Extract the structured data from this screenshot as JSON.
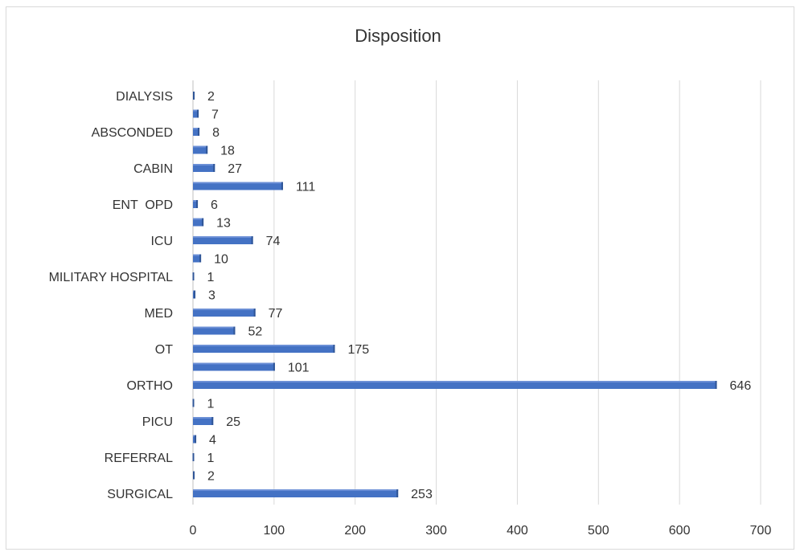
{
  "chart_data": {
    "type": "bar",
    "orientation": "horizontal",
    "title": "Disposition",
    "categories": [
      "SURGICAL",
      "",
      "REFERRAL",
      "",
      "PICU",
      "",
      "ORTHO",
      "",
      "OT",
      "",
      "MED",
      "",
      "MILITARY HOSPITAL",
      "",
      "ICU",
      "",
      "ENT  OPD",
      "",
      "CABIN",
      "",
      "ABSCONDED",
      "",
      "DIALYSIS"
    ],
    "values": [
      253,
      2,
      1,
      4,
      25,
      1,
      646,
      101,
      175,
      52,
      77,
      3,
      1,
      10,
      74,
      13,
      6,
      111,
      27,
      18,
      8,
      7,
      2
    ],
    "xlim": [
      0,
      700
    ],
    "xticks": [
      0,
      100,
      200,
      300,
      400,
      500,
      600,
      700
    ],
    "grid": true,
    "bar_color": "#4472c4",
    "xlabel": "",
    "ylabel": ""
  }
}
